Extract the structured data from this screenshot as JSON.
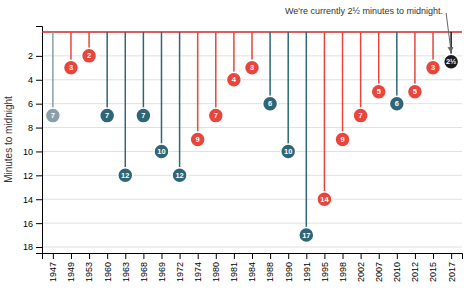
{
  "chart_data": {
    "type": "lollipop",
    "ylabel": "Minutes to midnight",
    "annotation": "We're currently 2½ minutes to midnight.",
    "categories": [
      "1947",
      "1949",
      "1953",
      "1960",
      "1963",
      "1968",
      "1969",
      "1972",
      "1974",
      "1980",
      "1981",
      "1984",
      "1988",
      "1990",
      "1991",
      "1995",
      "1998",
      "2002",
      "2007",
      "2010",
      "2012",
      "2015",
      "2017"
    ],
    "values": [
      7,
      3,
      2,
      7,
      12,
      7,
      10,
      12,
      9,
      7,
      4,
      3,
      6,
      10,
      17,
      14,
      9,
      7,
      5,
      6,
      5,
      3,
      2.5
    ],
    "value_labels": [
      "7",
      "3",
      "2",
      "7",
      "12",
      "7",
      "10",
      "12",
      "9",
      "7",
      "4",
      "3",
      "6",
      "10",
      "17",
      "14",
      "9",
      "7",
      "5",
      "6",
      "5",
      "3",
      "2½"
    ],
    "data_labels": true,
    "colors": [
      "#8b9faa",
      "#e8453c",
      "#e8453c",
      "#2e6677",
      "#2e6677",
      "#2e6677",
      "#2e6677",
      "#2e6677",
      "#e8453c",
      "#e8453c",
      "#e8453c",
      "#e8453c",
      "#2e6677",
      "#2e6677",
      "#2e6677",
      "#e8453c",
      "#e8453c",
      "#e8453c",
      "#e8453c",
      "#2e6677",
      "#e8453c",
      "#e8453c",
      "#1a1a1a"
    ],
    "ylim": [
      18.5,
      -0.5
    ],
    "yticks": [
      2,
      4,
      6,
      8,
      10,
      12,
      14,
      16,
      18
    ],
    "grid": true
  }
}
